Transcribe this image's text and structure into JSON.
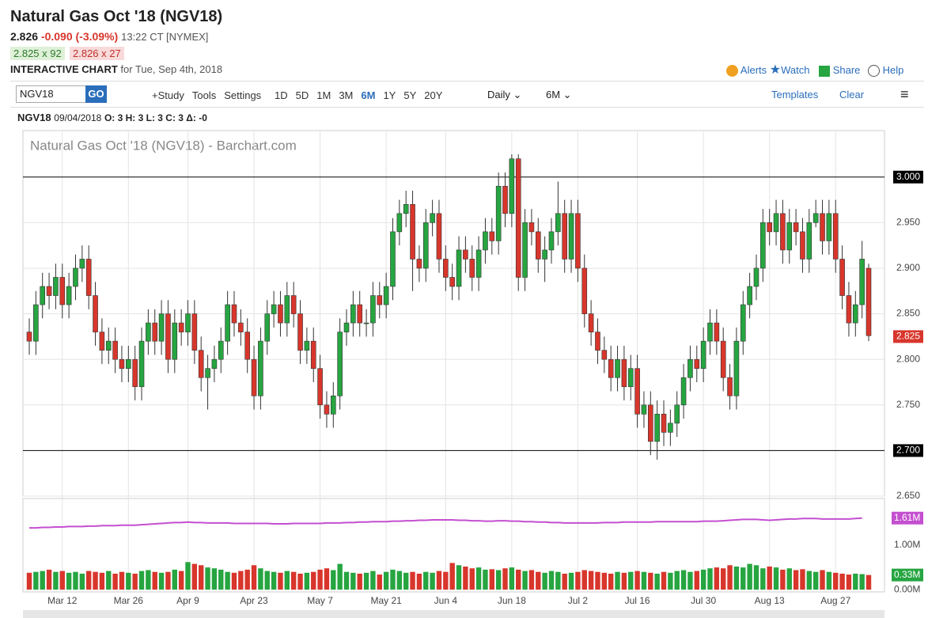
{
  "header": {
    "title": "Natural Gas Oct '18 (NGV18)",
    "price": "2.826",
    "change": "-0.090 (-3.09%)",
    "time": "13:22 CT [NYMEX]",
    "bid": "2.825 x 92",
    "ask": "2.826 x 27",
    "chart_label": "INTERACTIVE CHART",
    "chart_date": "for Tue, Sep 4th, 2018",
    "links": [
      "Alerts",
      "Watch",
      "Share",
      "Help"
    ]
  },
  "toolbar": {
    "symbol": "NGV18",
    "go": "GO",
    "items": [
      "+Study",
      "Tools",
      "Settings"
    ],
    "periods": [
      "1D",
      "5D",
      "1M",
      "3M",
      "6M",
      "1Y",
      "5Y",
      "20Y"
    ],
    "active_period": "6M",
    "interval": "Daily",
    "range": "6M",
    "templates": "Templates",
    "clear": "Clear"
  },
  "info": {
    "symbol": "NGV18",
    "date": "09/04/2018",
    "ohlc": "O: 3 H: 3 L: 3 C: 3 Δ: -0"
  },
  "chart_data": {
    "type": "candlestick",
    "title": "Natural Gas Oct '18 (NGV18) - Barchart.com",
    "categories": [
      null,
      null,
      null,
      null,
      null,
      "Mar 12",
      null,
      null,
      null,
      null,
      null,
      null,
      null,
      null,
      null,
      "Mar 26",
      null,
      null,
      null,
      null,
      null,
      null,
      null,
      null,
      "Apr 9",
      null,
      null,
      null,
      null,
      null,
      null,
      null,
      null,
      null,
      "Apr 23",
      null,
      null,
      null,
      null,
      null,
      null,
      null,
      null,
      null,
      "May 7",
      null,
      null,
      null,
      null,
      null,
      null,
      null,
      null,
      null,
      "May 21",
      null,
      null,
      null,
      null,
      null,
      null,
      null,
      null,
      "Jun 4",
      null,
      null,
      null,
      null,
      null,
      null,
      null,
      null,
      null,
      "Jun 18",
      null,
      null,
      null,
      null,
      null,
      null,
      null,
      null,
      null,
      "Jul 2",
      null,
      null,
      null,
      null,
      null,
      null,
      null,
      null,
      "Jul 16",
      null,
      null,
      null,
      null,
      null,
      null,
      null,
      null,
      null,
      "Jul 30",
      null,
      null,
      null,
      null,
      null,
      null,
      null,
      null,
      null,
      "Aug 13",
      null,
      null,
      null,
      null,
      null,
      null,
      null,
      null,
      null,
      "Aug 27",
      null,
      null,
      null,
      null,
      null
    ],
    "ohlc": [
      [
        2.83,
        2.845,
        2.805,
        2.82
      ],
      [
        2.82,
        2.875,
        2.805,
        2.86
      ],
      [
        2.86,
        2.895,
        2.845,
        2.88
      ],
      [
        2.88,
        2.895,
        2.855,
        2.87
      ],
      [
        2.87,
        2.905,
        2.855,
        2.89
      ],
      [
        2.89,
        2.905,
        2.845,
        2.86
      ],
      [
        2.86,
        2.895,
        2.845,
        2.88
      ],
      [
        2.88,
        2.915,
        2.865,
        2.9
      ],
      [
        2.9,
        2.925,
        2.885,
        2.91
      ],
      [
        2.91,
        2.925,
        2.855,
        2.87
      ],
      [
        2.87,
        2.885,
        2.815,
        2.83
      ],
      [
        2.83,
        2.845,
        2.795,
        2.81
      ],
      [
        2.81,
        2.835,
        2.795,
        2.82
      ],
      [
        2.82,
        2.835,
        2.785,
        2.8
      ],
      [
        2.8,
        2.815,
        2.775,
        2.79
      ],
      [
        2.79,
        2.815,
        2.775,
        2.8
      ],
      [
        2.8,
        2.815,
        2.755,
        2.77
      ],
      [
        2.77,
        2.835,
        2.755,
        2.82
      ],
      [
        2.82,
        2.855,
        2.805,
        2.84
      ],
      [
        2.84,
        2.855,
        2.805,
        2.82
      ],
      [
        2.82,
        2.865,
        2.805,
        2.85
      ],
      [
        2.85,
        2.865,
        2.785,
        2.8
      ],
      [
        2.8,
        2.855,
        2.785,
        2.84
      ],
      [
        2.84,
        2.855,
        2.815,
        2.83
      ],
      [
        2.83,
        2.865,
        2.815,
        2.85
      ],
      [
        2.85,
        2.865,
        2.795,
        2.81
      ],
      [
        2.81,
        2.825,
        2.765,
        2.78
      ],
      [
        2.78,
        2.805,
        2.745,
        2.79
      ],
      [
        2.79,
        2.815,
        2.775,
        2.8
      ],
      [
        2.8,
        2.835,
        2.785,
        2.82
      ],
      [
        2.82,
        2.875,
        2.805,
        2.86
      ],
      [
        2.86,
        2.875,
        2.825,
        2.84
      ],
      [
        2.84,
        2.855,
        2.815,
        2.83
      ],
      [
        2.83,
        2.845,
        2.785,
        2.8
      ],
      [
        2.8,
        2.815,
        2.745,
        2.76
      ],
      [
        2.76,
        2.835,
        2.745,
        2.82
      ],
      [
        2.82,
        2.865,
        2.805,
        2.85
      ],
      [
        2.85,
        2.875,
        2.835,
        2.86
      ],
      [
        2.86,
        2.875,
        2.825,
        2.84
      ],
      [
        2.84,
        2.885,
        2.825,
        2.87
      ],
      [
        2.87,
        2.885,
        2.835,
        2.85
      ],
      [
        2.85,
        2.865,
        2.795,
        2.81
      ],
      [
        2.81,
        2.835,
        2.795,
        2.82
      ],
      [
        2.82,
        2.835,
        2.775,
        2.79
      ],
      [
        2.79,
        2.805,
        2.735,
        2.75
      ],
      [
        2.75,
        2.765,
        2.725,
        2.74
      ],
      [
        2.74,
        2.775,
        2.725,
        2.76
      ],
      [
        2.76,
        2.845,
        2.745,
        2.83
      ],
      [
        2.83,
        2.855,
        2.815,
        2.84
      ],
      [
        2.84,
        2.875,
        2.825,
        2.86
      ],
      [
        2.86,
        2.875,
        2.825,
        2.84
      ],
      [
        2.84,
        2.855,
        2.825,
        2.84
      ],
      [
        2.84,
        2.885,
        2.825,
        2.87
      ],
      [
        2.87,
        2.885,
        2.845,
        2.86
      ],
      [
        2.86,
        2.895,
        2.845,
        2.88
      ],
      [
        2.88,
        2.955,
        2.865,
        2.94
      ],
      [
        2.94,
        2.975,
        2.925,
        2.96
      ],
      [
        2.96,
        2.985,
        2.945,
        2.97
      ],
      [
        2.97,
        2.985,
        2.875,
        2.91
      ],
      [
        2.91,
        2.925,
        2.885,
        2.9
      ],
      [
        2.9,
        2.965,
        2.885,
        2.95
      ],
      [
        2.95,
        2.975,
        2.935,
        2.96
      ],
      [
        2.96,
        2.975,
        2.895,
        2.91
      ],
      [
        2.91,
        2.925,
        2.875,
        2.89
      ],
      [
        2.89,
        2.905,
        2.865,
        2.88
      ],
      [
        2.88,
        2.935,
        2.865,
        2.92
      ],
      [
        2.92,
        2.935,
        2.895,
        2.91
      ],
      [
        2.91,
        2.925,
        2.875,
        2.89
      ],
      [
        2.89,
        2.935,
        2.875,
        2.92
      ],
      [
        2.92,
        2.955,
        2.905,
        2.94
      ],
      [
        2.94,
        2.955,
        2.915,
        2.93
      ],
      [
        2.93,
        3.005,
        2.915,
        2.99
      ],
      [
        2.99,
        3.005,
        2.945,
        2.96
      ],
      [
        2.96,
        3.025,
        2.945,
        3.02
      ],
      [
        3.02,
        3.025,
        2.875,
        2.89
      ],
      [
        2.89,
        2.965,
        2.875,
        2.95
      ],
      [
        2.95,
        2.965,
        2.925,
        2.94
      ],
      [
        2.94,
        2.955,
        2.895,
        2.91
      ],
      [
        2.91,
        2.935,
        2.885,
        2.92
      ],
      [
        2.92,
        2.955,
        2.905,
        2.94
      ],
      [
        2.94,
        2.995,
        2.925,
        2.96
      ],
      [
        2.96,
        2.975,
        2.895,
        2.91
      ],
      [
        2.91,
        2.975,
        2.895,
        2.96
      ],
      [
        2.96,
        2.975,
        2.885,
        2.9
      ],
      [
        2.9,
        2.915,
        2.835,
        2.85
      ],
      [
        2.85,
        2.865,
        2.815,
        2.83
      ],
      [
        2.83,
        2.845,
        2.795,
        2.81
      ],
      [
        2.81,
        2.825,
        2.785,
        2.8
      ],
      [
        2.8,
        2.815,
        2.765,
        2.78
      ],
      [
        2.78,
        2.815,
        2.765,
        2.8
      ],
      [
        2.8,
        2.815,
        2.755,
        2.77
      ],
      [
        2.77,
        2.805,
        2.755,
        2.79
      ],
      [
        2.79,
        2.805,
        2.725,
        2.74
      ],
      [
        2.74,
        2.765,
        2.725,
        2.75
      ],
      [
        2.75,
        2.765,
        2.695,
        2.71
      ],
      [
        2.71,
        2.755,
        2.69,
        2.74
      ],
      [
        2.74,
        2.755,
        2.705,
        2.72
      ],
      [
        2.72,
        2.745,
        2.705,
        2.73
      ],
      [
        2.73,
        2.765,
        2.715,
        2.75
      ],
      [
        2.75,
        2.795,
        2.735,
        2.78
      ],
      [
        2.78,
        2.815,
        2.765,
        2.8
      ],
      [
        2.8,
        2.815,
        2.775,
        2.79
      ],
      [
        2.79,
        2.835,
        2.775,
        2.82
      ],
      [
        2.82,
        2.855,
        2.805,
        2.84
      ],
      [
        2.84,
        2.855,
        2.805,
        2.82
      ],
      [
        2.82,
        2.835,
        2.765,
        2.78
      ],
      [
        2.78,
        2.795,
        2.745,
        2.76
      ],
      [
        2.76,
        2.835,
        2.745,
        2.82
      ],
      [
        2.82,
        2.875,
        2.805,
        2.86
      ],
      [
        2.86,
        2.895,
        2.845,
        2.88
      ],
      [
        2.88,
        2.915,
        2.865,
        2.9
      ],
      [
        2.9,
        2.965,
        2.885,
        2.95
      ],
      [
        2.95,
        2.965,
        2.925,
        2.94
      ],
      [
        2.94,
        2.975,
        2.925,
        2.96
      ],
      [
        2.96,
        2.975,
        2.905,
        2.92
      ],
      [
        2.92,
        2.965,
        2.905,
        2.95
      ],
      [
        2.95,
        2.965,
        2.925,
        2.94
      ],
      [
        2.94,
        2.955,
        2.895,
        2.91
      ],
      [
        2.91,
        2.965,
        2.895,
        2.95
      ],
      [
        2.95,
        2.975,
        2.945,
        2.96
      ],
      [
        2.96,
        2.975,
        2.915,
        2.93
      ],
      [
        2.93,
        2.975,
        2.915,
        2.96
      ],
      [
        2.96,
        2.975,
        2.895,
        2.91
      ],
      [
        2.91,
        2.925,
        2.855,
        2.87
      ],
      [
        2.87,
        2.885,
        2.825,
        2.84
      ],
      [
        2.84,
        2.875,
        2.825,
        2.86
      ],
      [
        2.86,
        2.93,
        2.845,
        2.91
      ],
      [
        2.9,
        2.905,
        2.82,
        2.826
      ]
    ],
    "ylim": [
      2.65,
      3.051
    ],
    "yticks": [
      {
        "value": 2.65,
        "label": "2.650"
      },
      {
        "value": 2.75,
        "label": "2.750"
      },
      {
        "value": 2.8,
        "label": "2.800"
      },
      {
        "value": 2.85,
        "label": "2.850"
      },
      {
        "value": 2.9,
        "label": "2.900"
      },
      {
        "value": 2.95,
        "label": "2.950"
      }
    ],
    "hlines": [
      {
        "value": 3,
        "label": "3.000"
      },
      {
        "value": 2.7,
        "label": "2.700"
      }
    ],
    "last_price": 2.825,
    "up_color": "#26a541",
    "down_color": "#d8362c",
    "grid": true,
    "volume": {
      "ylim": [
        -0.05,
        2.05
      ],
      "yticks": [
        {
          "value": 0,
          "label": "0.00M"
        },
        {
          "value": 1,
          "label": "1.00M"
        }
      ],
      "last_label": "0.33M",
      "values": [
        0.38,
        0.4,
        0.42,
        0.45,
        0.4,
        0.42,
        0.38,
        0.4,
        0.36,
        0.42,
        0.4,
        0.38,
        0.42,
        0.36,
        0.4,
        0.38,
        0.36,
        0.42,
        0.44,
        0.4,
        0.38,
        0.4,
        0.45,
        0.42,
        0.62,
        0.58,
        0.55,
        0.5,
        0.48,
        0.45,
        0.4,
        0.38,
        0.42,
        0.45,
        0.55,
        0.48,
        0.42,
        0.4,
        0.38,
        0.42,
        0.4,
        0.36,
        0.38,
        0.4,
        0.45,
        0.48,
        0.44,
        0.58,
        0.4,
        0.38,
        0.36,
        0.38,
        0.42,
        0.34,
        0.4,
        0.45,
        0.42,
        0.38,
        0.4,
        0.36,
        0.4,
        0.38,
        0.42,
        0.4,
        0.6,
        0.55,
        0.52,
        0.48,
        0.5,
        0.45,
        0.46,
        0.44,
        0.48,
        0.5,
        0.45,
        0.42,
        0.44,
        0.4,
        0.38,
        0.42,
        0.4,
        0.36,
        0.38,
        0.4,
        0.44,
        0.42,
        0.4,
        0.38,
        0.36,
        0.4,
        0.38,
        0.4,
        0.42,
        0.4,
        0.38,
        0.36,
        0.4,
        0.38,
        0.42,
        0.44,
        0.4,
        0.42,
        0.45,
        0.48,
        0.5,
        0.48,
        0.55,
        0.52,
        0.5,
        0.58,
        0.55,
        0.48,
        0.52,
        0.5,
        0.45,
        0.48,
        0.44,
        0.46,
        0.42,
        0.4,
        0.44,
        0.4,
        0.38,
        0.36,
        0.34,
        0.36,
        0.35,
        0.33
      ]
    },
    "open_interest": {
      "color": "#c44fd0",
      "last_label": "1.61M",
      "values": [
        1.39,
        1.39,
        1.4,
        1.4,
        1.41,
        1.41,
        1.42,
        1.42,
        1.42,
        1.43,
        1.43,
        1.44,
        1.44,
        1.44,
        1.45,
        1.45,
        1.45,
        1.46,
        1.47,
        1.48,
        1.49,
        1.5,
        1.51,
        1.51,
        1.52,
        1.51,
        1.51,
        1.5,
        1.5,
        1.5,
        1.5,
        1.49,
        1.49,
        1.49,
        1.49,
        1.49,
        1.49,
        1.48,
        1.48,
        1.48,
        1.49,
        1.49,
        1.49,
        1.49,
        1.49,
        1.5,
        1.5,
        1.5,
        1.51,
        1.51,
        1.52,
        1.52,
        1.53,
        1.53,
        1.53,
        1.54,
        1.54,
        1.55,
        1.55,
        1.56,
        1.56,
        1.57,
        1.57,
        1.57,
        1.57,
        1.56,
        1.56,
        1.55,
        1.55,
        1.54,
        1.54,
        1.55,
        1.55,
        1.54,
        1.54,
        1.53,
        1.53,
        1.52,
        1.52,
        1.51,
        1.51,
        1.5,
        1.5,
        1.5,
        1.5,
        1.5,
        1.5,
        1.51,
        1.51,
        1.51,
        1.52,
        1.52,
        1.52,
        1.52,
        1.52,
        1.53,
        1.53,
        1.53,
        1.53,
        1.53,
        1.53,
        1.53,
        1.54,
        1.54,
        1.54,
        1.55,
        1.56,
        1.57,
        1.58,
        1.58,
        1.58,
        1.57,
        1.56,
        1.57,
        1.58,
        1.59,
        1.59,
        1.6,
        1.6,
        1.6,
        1.59,
        1.59,
        1.59,
        1.59,
        1.59,
        1.6,
        1.61,
        null
      ]
    }
  }
}
